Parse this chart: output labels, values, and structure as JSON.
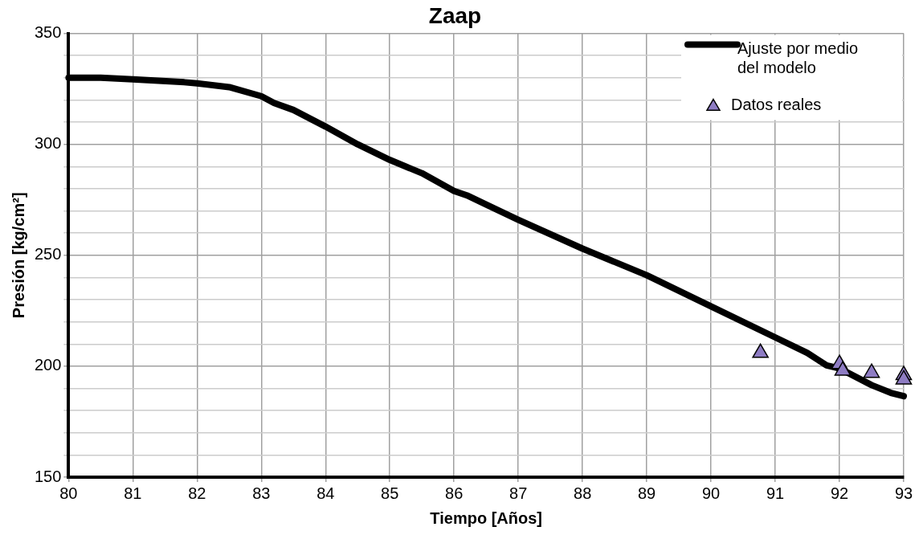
{
  "chart_data": {
    "type": "line",
    "title": "Zaap",
    "xlabel": "Tiempo [Años]",
    "ylabel": "Presión [kg/cm²]",
    "xlim": [
      80,
      93
    ],
    "xticks": [
      80,
      81,
      82,
      83,
      84,
      85,
      86,
      87,
      88,
      89,
      90,
      91,
      92,
      93
    ],
    "ylim": [
      150,
      350
    ],
    "yticks": [
      150,
      {
        "value": 160,
        "label": null
      },
      {
        "value": 170,
        "label": null
      },
      {
        "value": 180,
        "label": null
      },
      {
        "value": 190,
        "label": null
      },
      200,
      {
        "value": 210,
        "label": null
      },
      {
        "value": 220,
        "label": null
      },
      {
        "value": 230,
        "label": null
      },
      {
        "value": 240,
        "label": null
      },
      250,
      {
        "value": 260,
        "label": null
      },
      {
        "value": 270,
        "label": null
      },
      {
        "value": 280,
        "label": null
      },
      {
        "value": 290,
        "label": null
      },
      300,
      {
        "value": 310,
        "label": null
      },
      {
        "value": 320,
        "label": null
      },
      {
        "value": 330,
        "label": null
      },
      {
        "value": 340,
        "label": null
      },
      350
    ],
    "grid": true,
    "legend": "top right",
    "series": [
      {
        "name": "Ajuste por medio del modelo",
        "color": "#000000",
        "marker": "none",
        "line_style": "solid",
        "x": [
          80,
          80.5,
          81,
          81.8,
          82,
          82.5,
          83,
          83.2,
          83.5,
          84,
          84.5,
          85,
          85.5,
          86,
          86.2,
          87,
          88,
          89,
          90,
          91,
          91.5,
          91.8,
          92,
          92.5,
          92.8,
          93
        ],
        "values": [
          330,
          330,
          329.3,
          328,
          327.5,
          325.8,
          321.7,
          318.6,
          315.5,
          308,
          300,
          293,
          287,
          279,
          277,
          266,
          253,
          241,
          227,
          213,
          206,
          200.4,
          199,
          191.5,
          188,
          186.5
        ]
      },
      {
        "name": "Datos reales",
        "type": "scatter",
        "color": "#8e7cc3",
        "marker": "triangle",
        "x": [
          90.77,
          92,
          92.05,
          92.5,
          93,
          93
        ],
        "values": [
          206,
          201,
          198,
          197,
          196,
          194
        ]
      }
    ]
  }
}
